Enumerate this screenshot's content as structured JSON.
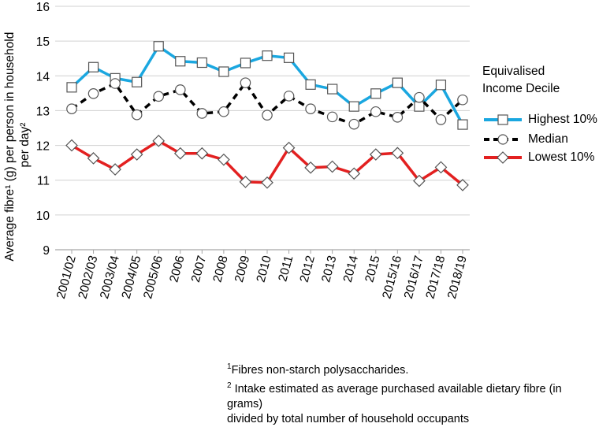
{
  "chart_data": {
    "type": "line",
    "title": "",
    "xlabel": "",
    "ylabel": "Average fibre¹ (g) per person in household per day²",
    "ylabel_line1": "Average fibre¹ (g) per person in household",
    "ylabel_line2": "per day²",
    "ylim": [
      9,
      16
    ],
    "yticks": [
      "9",
      "10",
      "11",
      "12",
      "13",
      "14",
      "15",
      "16"
    ],
    "grid": true,
    "categories": [
      "2001/02",
      "2002/03",
      "2003/04",
      "2004/05",
      "2005/06",
      "2006",
      "2007",
      "2008",
      "2009",
      "2010",
      "2011",
      "2012",
      "2013",
      "2014",
      "2015",
      "2015/16",
      "2016/17",
      "2017/18",
      "2018/19"
    ],
    "series": [
      {
        "name": "Highest 10%",
        "color": "#1aa7e0",
        "marker": "square",
        "dash": "solid",
        "values": [
          13.67,
          14.25,
          13.93,
          13.82,
          14.85,
          14.42,
          14.38,
          14.12,
          14.37,
          14.58,
          14.52,
          13.75,
          13.62,
          13.12,
          13.49,
          13.8,
          13.12,
          13.74,
          12.6
        ]
      },
      {
        "name": "Median",
        "color": "#000000",
        "marker": "circle",
        "dash": "dashed",
        "values": [
          13.05,
          13.49,
          13.78,
          12.88,
          13.41,
          13.6,
          12.92,
          12.97,
          13.8,
          12.87,
          13.42,
          13.05,
          12.82,
          12.61,
          12.97,
          12.81,
          13.38,
          12.74,
          13.31
        ]
      },
      {
        "name": "Lowest 10%",
        "color": "#e32020",
        "marker": "diamond",
        "dash": "solid",
        "values": [
          12.0,
          11.63,
          11.31,
          11.74,
          12.13,
          11.77,
          11.77,
          11.59,
          10.95,
          10.93,
          11.93,
          11.36,
          11.39,
          11.19,
          11.74,
          11.78,
          10.98,
          11.37,
          10.86
        ]
      }
    ]
  },
  "legend": {
    "title_line1": "Equivalised",
    "title_line2": "Income Decile",
    "position": "right"
  },
  "footnotes": {
    "note1_mark": "1",
    "note1_text": "Fibres non-starch polysaccharides.",
    "note2_mark": "2",
    "note2_text": " Intake estimated as average purchased available dietary fibre (in grams)",
    "note2_cont": "divided by total number of household occupants"
  }
}
